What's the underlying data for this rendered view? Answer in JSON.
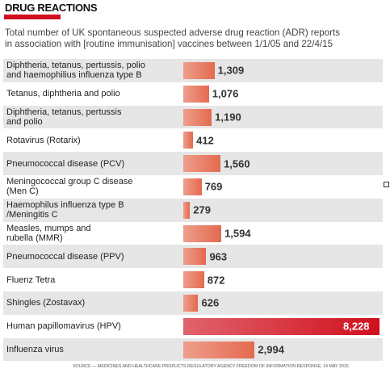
{
  "chart_data": {
    "type": "bar",
    "orientation": "horizontal",
    "title": "DRUG REACTIONS",
    "subtitle": "Total number of UK spontaneous suspected adverse drug reaction (ADR) reports\nin association with [routine immunisation] vaccines between 1/1/05 and 22/4/15",
    "categories": [
      "Diphtheria, tetanus, pertussis, polio\nand haemophilius influenza type B",
      "Tetanus, diphtheria and polio",
      "Diphtheria, tetanus, pertussis\nand polio",
      "Rotavirus (Rotarix)",
      "Pneumococcal disease (PCV)",
      "Meningococcal group C disease\n(Men C)",
      "Haemophilus influenza type B\n/Meningitis C",
      "Measles, mumps and\nrubella (MMR)",
      "Pneumococcal disease (PPV)",
      "Fluenz Tetra",
      "Shingles (Zostavax)",
      "Human papillomavirus (HPV)",
      "Influenza virus"
    ],
    "values": [
      1309,
      1076,
      1190,
      412,
      1560,
      769,
      279,
      1594,
      963,
      872,
      626,
      8228,
      2994
    ],
    "value_labels": [
      "1,309",
      "1,076",
      "1,190",
      "412",
      "1,560",
      "769",
      "279",
      "1,594",
      "963",
      "872",
      "626",
      "8,228",
      "2,994"
    ],
    "colors": [
      "#e46a4f",
      "#e46a4f",
      "#e46a4f",
      "#e46a4f",
      "#e46a4f",
      "#e46a4f",
      "#e46a4f",
      "#e46a4f",
      "#e46a4f",
      "#e46a4f",
      "#e46a4f",
      "#d0101e",
      "#e46a4f"
    ],
    "source": "SOURCE — MEDICINES AND HEALTHCARE PRODUCTS REGULATORY AGENCY FREEDOM OF INFORMATION RESPONSE, 14 MAY 2015"
  }
}
